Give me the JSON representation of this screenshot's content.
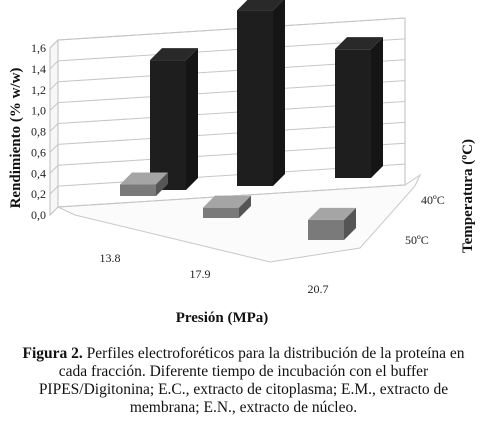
{
  "chart_data": {
    "type": "bar",
    "subtype": "3d-grouped",
    "categories": [
      "13.8",
      "17.9",
      "20.7"
    ],
    "series": [
      {
        "name": "40ºC",
        "values": [
          1.22,
          1.65,
          1.21
        ],
        "color": "#1e1e1e"
      },
      {
        "name": "50ºC",
        "values": [
          0.2,
          0.18,
          0.35
        ],
        "color": "#7a7a7a"
      }
    ],
    "xlabel": "Presión (MPa)",
    "ylabel": "Rendimiento (% w/w)",
    "zlabel": "Temperatura (ºC)",
    "yticks": [
      "0,0",
      "0,2",
      "0,4",
      "0,6",
      "0,8",
      "1,0",
      "1,2",
      "1,4",
      "1,6"
    ],
    "ylim": [
      0,
      1.6
    ],
    "grid": true
  },
  "caption": {
    "label": "Figura 2.",
    "text": " Perfiles electroforéticos para la distribución de la proteína en cada fracción. Diferente tiempo de incubación con el buffer PIPES/Digitonina; E.C., extracto de citoplasma; E.M., extracto de membrana; E.N., extracto de núcleo."
  }
}
